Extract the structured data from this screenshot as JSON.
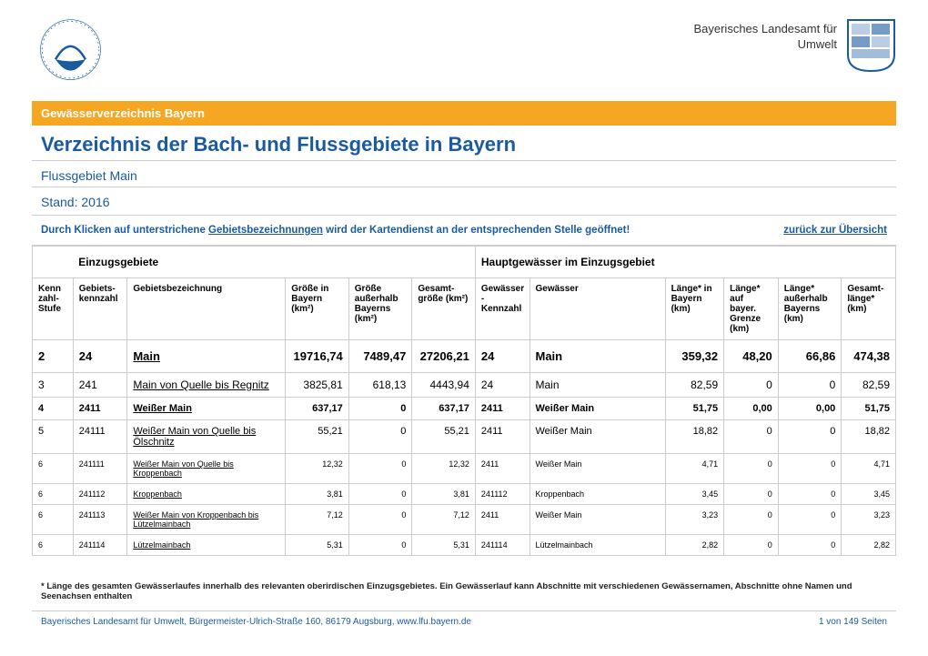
{
  "header": {
    "org_name_line1": "Bayerisches Landesamt für",
    "org_name_line2": "Umwelt",
    "logo_color": "#1a5a9e",
    "crest_primary": "#1a5a9e",
    "crest_secondary": "#fff"
  },
  "banner": "Gewässerverzeichnis Bayern",
  "title": "Verzeichnis der Bach- und Flussgebiete in Bayern",
  "subtitle": "Flussgebiet Main",
  "stand": "Stand: 2016",
  "instruction_pre": "Durch Klicken auf unterstrichene ",
  "instruction_ul": "Gebietsbezeichnungen",
  "instruction_post": " wird der Kartendienst an der entsprechenden Stelle geöffnet!",
  "back_link": "zurück zur Übersicht",
  "group_headers": {
    "left": "Einzugsgebiete",
    "right": "Hauptgewässer im Einzugsgebiet"
  },
  "columns": [
    "Kenn zahl- Stufe",
    "Gebiets- kennzahl",
    "Gebietsbezeichnung",
    "Größe in Bayern (km²)",
    "Größe außerhalb Bayerns (km²)",
    "Gesamt- größe (km²)",
    "Gewässer -Kennzahl",
    "Gewässer",
    "Länge* in Bayern (km)",
    "Länge* auf bayer. Grenze (km)",
    "Länge* außerhalb Bayerns (km)",
    "Gesamt- länge* (km)"
  ],
  "rows": [
    {
      "lvl": "2",
      "cells": [
        "2",
        "24",
        "Main",
        "19716,74",
        "7489,47",
        "27206,21",
        "24",
        "Main",
        "359,32",
        "48,20",
        "66,86",
        "474,38"
      ]
    },
    {
      "lvl": "3",
      "cells": [
        "3",
        "241",
        "Main von Quelle bis Regnitz",
        "3825,81",
        "618,13",
        "4443,94",
        "24",
        "Main",
        "82,59",
        "0",
        "0",
        "82,59"
      ]
    },
    {
      "lvl": "4",
      "cells": [
        "4",
        "2411",
        "Weißer Main",
        "637,17",
        "0",
        "637,17",
        "2411",
        "Weißer Main",
        "51,75",
        "0,00",
        "0,00",
        "51,75"
      ]
    },
    {
      "lvl": "5",
      "cells": [
        "5",
        "24111",
        "Weißer Main von Quelle bis Ölschnitz",
        "55,21",
        "0",
        "55,21",
        "2411",
        "Weißer Main",
        "18,82",
        "0",
        "0",
        "18,82"
      ]
    },
    {
      "lvl": "6",
      "cells": [
        "6",
        "241111",
        "Weißer Main von Quelle bis Kroppenbach",
        "12,32",
        "0",
        "12,32",
        "2411",
        "Weißer Main",
        "4,71",
        "0",
        "0",
        "4,71"
      ]
    },
    {
      "lvl": "6",
      "cells": [
        "6",
        "241112",
        "Kroppenbach",
        "3,81",
        "0",
        "3,81",
        "241112",
        "Kroppenbach",
        "3,45",
        "0",
        "0",
        "3,45"
      ]
    },
    {
      "lvl": "6",
      "cells": [
        "6",
        "241113",
        "Weißer Main von Kroppenbach bis Lützelmainbach",
        "7,12",
        "0",
        "7,12",
        "2411",
        "Weißer Main",
        "3,23",
        "0",
        "0",
        "3,23"
      ]
    },
    {
      "lvl": "6",
      "cells": [
        "6",
        "241114",
        "Lützelmainbach",
        "5,31",
        "0",
        "5,31",
        "241114",
        "Lützelmainbach",
        "2,82",
        "0",
        "0",
        "2,82"
      ]
    }
  ],
  "footnote": "* Länge des gesamten Gewässerlaufes innerhalb des relevanten oberirdischen Einzugsgebietes. Ein Gewässerlauf kann Abschnitte mit verschiedenen Gewässernamen, Abschnitte ohne Namen und Seenachsen enthalten",
  "footer": {
    "left": "Bayerisches Landesamt für Umwelt, Bürgermeister-Ulrich-Straße 160, 86179 Augsburg, www.lfu.bayern.de",
    "right": "1 von 149 Seiten"
  },
  "colors": {
    "accent": "#1a5a9e",
    "banner": "#f5a623",
    "border": "#cccccc"
  }
}
